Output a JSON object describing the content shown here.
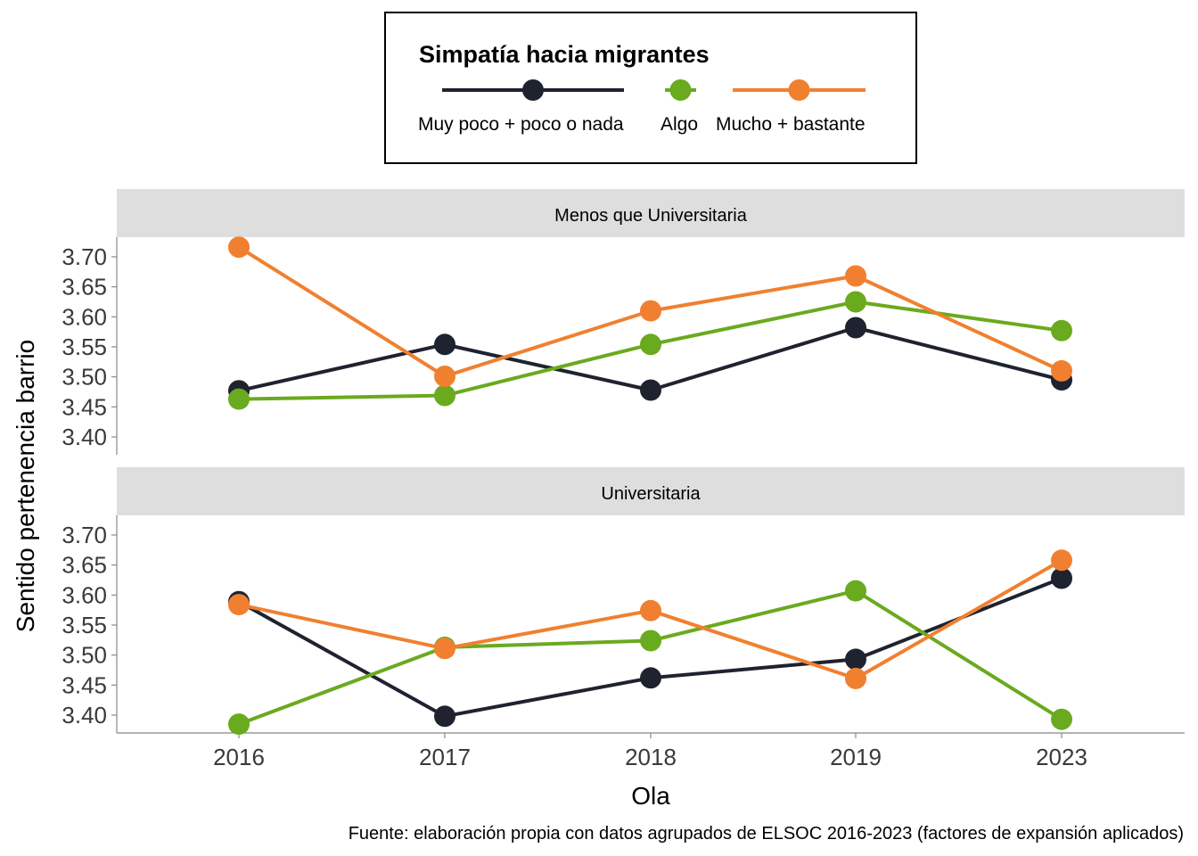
{
  "chart_data": {
    "type": "line",
    "x": [
      "2016",
      "2017",
      "2018",
      "2019",
      "2023"
    ],
    "xlabel": "Ola",
    "ylabel": "Sentido pertenencia barrio",
    "yticks": [
      "3.40",
      "3.45",
      "3.50",
      "3.55",
      "3.60",
      "3.65",
      "3.70"
    ],
    "ylim": [
      3.37,
      3.73
    ],
    "grid": false,
    "legend": {
      "title": "Simpatía hacia migrantes",
      "position": "top",
      "entries": [
        {
          "label": "Muy poco + poco o nada",
          "color": "#1f2330"
        },
        {
          "label": "Algo",
          "color": "#6aaa1f"
        },
        {
          "label": "Mucho + bastante",
          "color": "#f08030"
        }
      ]
    },
    "caption": "Fuente: elaboración propia con datos agrupados de ELSOC 2016-2023 (factores de expansión aplicados)",
    "panels": [
      {
        "title": "Menos que Universitaria",
        "series": [
          {
            "name": "Muy poco + poco o nada",
            "color": "#1f2330",
            "values": [
              3.477,
              3.554,
              3.478,
              3.582,
              3.495
            ]
          },
          {
            "name": "Algo",
            "color": "#6aaa1f",
            "values": [
              3.463,
              3.469,
              3.554,
              3.625,
              3.577
            ]
          },
          {
            "name": "Mucho + bastante",
            "color": "#f08030",
            "values": [
              3.716,
              3.501,
              3.61,
              3.668,
              3.51
            ]
          }
        ]
      },
      {
        "title": "Universitaria",
        "series": [
          {
            "name": "Muy poco + poco o nada",
            "color": "#1f2330",
            "values": [
              3.589,
              3.398,
              3.462,
              3.493,
              3.628
            ]
          },
          {
            "name": "Algo",
            "color": "#6aaa1f",
            "values": [
              3.385,
              3.513,
              3.524,
              3.607,
              3.393
            ]
          },
          {
            "name": "Mucho + bastante",
            "color": "#f08030",
            "values": [
              3.584,
              3.511,
              3.574,
              3.461,
              3.658
            ]
          }
        ]
      }
    ]
  }
}
